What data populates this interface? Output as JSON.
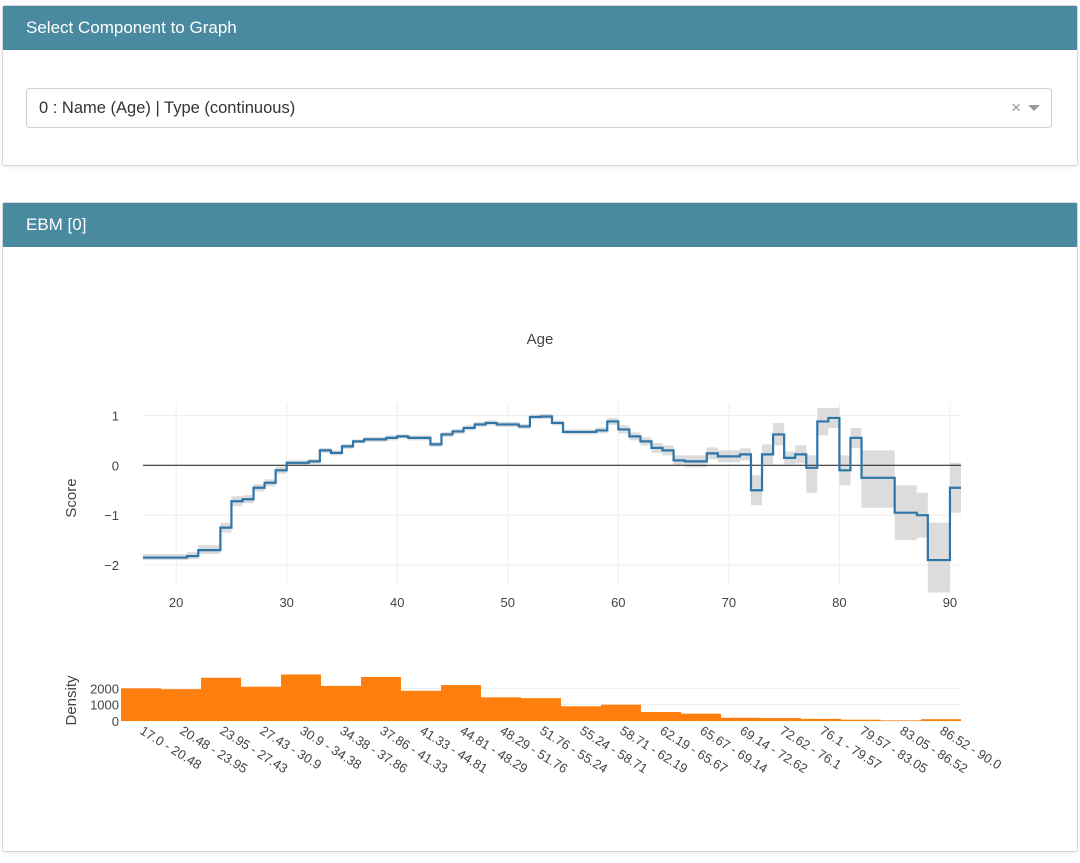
{
  "select_panel": {
    "header": "Select Component to Graph",
    "selected_value": "0 : Name (Age) | Type (continuous)",
    "clear_glyph": "×"
  },
  "ebm_panel": {
    "header": "EBM [0]"
  },
  "colors": {
    "header_bg": "#4a8aa0",
    "line": "#2e75a8",
    "bars": "#ff7f0e",
    "band": "#d3d3d3"
  },
  "chart_data": [
    {
      "type": "line",
      "title": "Age",
      "xlabel": "",
      "ylabel": "Score",
      "xlim": [
        17,
        91
      ],
      "ylim": [
        -2.4,
        1.25
      ],
      "xticks": [
        20,
        30,
        40,
        50,
        60,
        70,
        80,
        90
      ],
      "yticks": [
        -2,
        -1,
        0,
        1
      ],
      "grid": true,
      "zero_line": true,
      "step": true,
      "series": [
        {
          "x": [
            17,
            21,
            22,
            24,
            25,
            26,
            27,
            28,
            29,
            30,
            32,
            33,
            34,
            35,
            36,
            37,
            39,
            40,
            41,
            42,
            43,
            44,
            45,
            46,
            47,
            48,
            49,
            50,
            51,
            52,
            53,
            54,
            55,
            58,
            59,
            60,
            61,
            62,
            63,
            64,
            65,
            66,
            68,
            69,
            71,
            72,
            73,
            74,
            75,
            76,
            77,
            78,
            79,
            80,
            81,
            82,
            85,
            87,
            88,
            90,
            91
          ],
          "y": [
            -1.85,
            -1.82,
            -1.7,
            -1.25,
            -0.72,
            -0.68,
            -0.45,
            -0.35,
            -0.1,
            0.05,
            0.08,
            0.3,
            0.25,
            0.38,
            0.48,
            0.52,
            0.55,
            0.58,
            0.55,
            0.55,
            0.42,
            0.62,
            0.68,
            0.75,
            0.82,
            0.85,
            0.82,
            0.82,
            0.78,
            0.97,
            0.98,
            0.85,
            0.67,
            0.7,
            0.88,
            0.72,
            0.58,
            0.48,
            0.35,
            0.3,
            0.1,
            0.08,
            0.24,
            0.18,
            0.22,
            -0.5,
            0.22,
            0.62,
            0.15,
            0.22,
            -0.05,
            0.88,
            0.95,
            -0.1,
            0.55,
            -0.25,
            -0.95,
            -1.0,
            -1.9,
            -0.45,
            -0.45
          ],
          "upper": [
            -1.78,
            -1.74,
            -1.6,
            -1.15,
            -0.62,
            -0.6,
            -0.38,
            -0.28,
            -0.03,
            0.1,
            0.13,
            0.35,
            0.3,
            0.43,
            0.52,
            0.57,
            0.6,
            0.62,
            0.6,
            0.6,
            0.47,
            0.67,
            0.73,
            0.8,
            0.87,
            0.9,
            0.87,
            0.87,
            0.83,
            1.02,
            1.03,
            0.9,
            0.72,
            0.76,
            0.95,
            0.8,
            0.66,
            0.56,
            0.45,
            0.4,
            0.2,
            0.2,
            0.36,
            0.3,
            0.34,
            -0.2,
            0.42,
            0.85,
            0.28,
            0.4,
            0.2,
            1.15,
            1.15,
            0.2,
            0.75,
            0.3,
            -0.4,
            -0.55,
            -1.15,
            0.05,
            0.05
          ],
          "lower": [
            -1.9,
            -1.88,
            -1.78,
            -1.35,
            -0.82,
            -0.76,
            -0.52,
            -0.42,
            -0.17,
            0.0,
            0.03,
            0.25,
            0.2,
            0.33,
            0.44,
            0.47,
            0.5,
            0.54,
            0.5,
            0.5,
            0.37,
            0.57,
            0.63,
            0.7,
            0.77,
            0.8,
            0.77,
            0.77,
            0.73,
            0.92,
            0.93,
            0.8,
            0.62,
            0.64,
            0.81,
            0.64,
            0.5,
            0.4,
            0.25,
            0.2,
            0.0,
            -0.04,
            0.12,
            0.06,
            0.1,
            -0.8,
            0.02,
            0.4,
            0.02,
            0.04,
            -0.55,
            0.6,
            0.75,
            -0.4,
            0.35,
            -0.85,
            -1.5,
            -1.45,
            -2.55,
            -0.95,
            -0.95
          ]
        }
      ]
    },
    {
      "type": "bar",
      "ylabel": "Density",
      "ylim": [
        0,
        3000
      ],
      "yticks": [
        0,
        1000,
        2000
      ],
      "categories": [
        "17.0 - 20.48",
        "20.48 - 23.95",
        "23.95 - 27.43",
        "27.43 - 30.9",
        "30.9 - 34.38",
        "34.38 - 37.86",
        "37.86 - 41.33",
        "41.33 - 44.81",
        "44.81 - 48.29",
        "48.29 - 51.76",
        "51.76 - 55.24",
        "55.24 - 58.71",
        "58.71 - 62.19",
        "62.19 - 65.67",
        "65.67 - 69.14",
        "69.14 - 72.62",
        "72.62 - 76.1",
        "76.1 - 79.57",
        "79.57 - 83.05",
        "83.05 - 86.52",
        "86.52 - 90.0"
      ],
      "values": [
        2000,
        1950,
        2650,
        2100,
        2850,
        2150,
        2700,
        1850,
        2200,
        1450,
        1400,
        900,
        1000,
        550,
        450,
        200,
        180,
        130,
        80,
        40,
        110
      ]
    }
  ]
}
